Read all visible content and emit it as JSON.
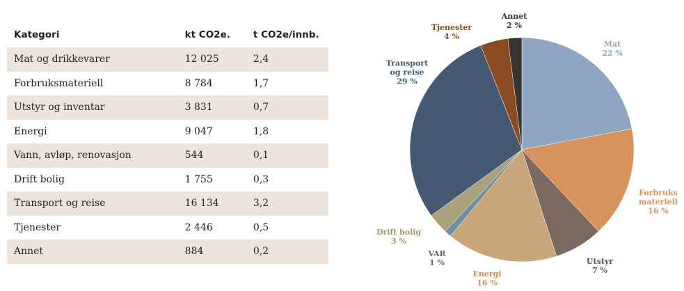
{
  "table": {
    "header": [
      "Kategori",
      "kt CO2e.",
      "t CO2e/innb."
    ],
    "rows": [
      [
        "Mat og drikkevarer",
        "12 025",
        "2,4"
      ],
      [
        "Forbruksmateriell",
        "8 784",
        "1,7"
      ],
      [
        "Utstyr og inventar",
        "3 831",
        "0,7"
      ],
      [
        "Energi",
        "9 047",
        "1,8"
      ],
      [
        "Vann, avløp, renovasjon",
        "544",
        "0,1"
      ],
      [
        "Drift bolig",
        "1 755",
        "0,3"
      ],
      [
        "Transport og reise",
        "16 134",
        "3,2"
      ],
      [
        "Tjenester",
        "2 446",
        "0,5"
      ],
      [
        "Annet",
        "884",
        "0,2"
      ]
    ]
  },
  "chart_data": {
    "type": "pie",
    "categories": [
      "Mat",
      "Forbruks\nmateriell",
      "Utstyr",
      "Energi",
      "VAR",
      "Drift bolig",
      "Transport\nog reise",
      "Tjenester",
      "Annet"
    ],
    "values": [
      22,
      16,
      7,
      16,
      1,
      3,
      29,
      4,
      2
    ],
    "value_labels": [
      "22 %",
      "16 %",
      "7 %",
      "16 %",
      "1 %",
      "3 %",
      "29 %",
      "4 %",
      "2 %"
    ],
    "colors": [
      "#8ea6c1",
      "#d8925b",
      "#7a6a5f",
      "#c9a57a",
      "#6f8fa3",
      "#a9a27c",
      "#435a72",
      "#8b4b22",
      "#3a3430"
    ]
  }
}
